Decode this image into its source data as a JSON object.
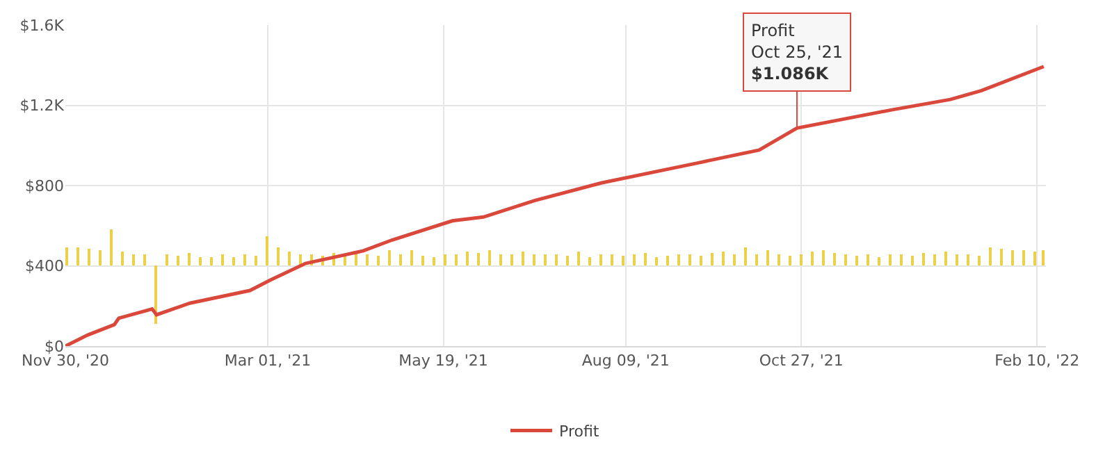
{
  "chart_data": {
    "type": "line",
    "legend": "bottom",
    "grid": true,
    "xlim": [
      "2020-11-30",
      "2022-02-14"
    ],
    "xticks": [
      {
        "value": "2020-11-30",
        "label": "Nov 30, '20"
      },
      {
        "value": "2021-03-01",
        "label": "Mar 01, '21"
      },
      {
        "value": "2021-05-19",
        "label": "May 19, '21"
      },
      {
        "value": "2021-08-09",
        "label": "Aug 09, '21"
      },
      {
        "value": "2021-10-27",
        "label": "Oct 27, '21"
      },
      {
        "value": "2022-02-10",
        "label": "Feb 10, '22"
      }
    ],
    "ylim": [
      0,
      1600
    ],
    "yticks": [
      {
        "value": 0,
        "label": "$0"
      },
      {
        "value": 400,
        "label": "$400"
      },
      {
        "value": 800,
        "label": "$800"
      },
      {
        "value": 1200,
        "label": "$1.2K"
      },
      {
        "value": 1600,
        "label": "$1.6K"
      }
    ],
    "series": [
      {
        "type": "bar",
        "color": "#ebcf45",
        "x": [
          "2020-12-01",
          "2020-12-06",
          "2020-12-11",
          "2020-12-16",
          "2020-12-21",
          "2020-12-26",
          "2020-12-31",
          "2021-01-05",
          "2021-01-10",
          "2021-01-15",
          "2021-01-20",
          "2021-01-25",
          "2021-01-30",
          "2021-02-04",
          "2021-02-09",
          "2021-02-14",
          "2021-02-19",
          "2021-02-24",
          "2021-03-01",
          "2021-03-06",
          "2021-03-11",
          "2021-03-16",
          "2021-03-21",
          "2021-03-26",
          "2021-03-31",
          "2021-04-05",
          "2021-04-10",
          "2021-04-15",
          "2021-04-20",
          "2021-04-25",
          "2021-04-30",
          "2021-05-05",
          "2021-05-10",
          "2021-05-15",
          "2021-05-20",
          "2021-05-25",
          "2021-05-30",
          "2021-06-04",
          "2021-06-09",
          "2021-06-14",
          "2021-06-19",
          "2021-06-24",
          "2021-06-29",
          "2021-07-04",
          "2021-07-09",
          "2021-07-14",
          "2021-07-19",
          "2021-07-24",
          "2021-07-29",
          "2021-08-03",
          "2021-08-08",
          "2021-08-13",
          "2021-08-18",
          "2021-08-23",
          "2021-08-28",
          "2021-09-02",
          "2021-09-07",
          "2021-09-12",
          "2021-09-17",
          "2021-09-22",
          "2021-09-27",
          "2021-10-02",
          "2021-10-07",
          "2021-10-12",
          "2021-10-17",
          "2021-10-22",
          "2021-10-27",
          "2021-11-01",
          "2021-11-06",
          "2021-11-11",
          "2021-11-16",
          "2021-11-21",
          "2021-11-26",
          "2021-12-01",
          "2021-12-06",
          "2021-12-11",
          "2021-12-16",
          "2021-12-21",
          "2021-12-26",
          "2021-12-31",
          "2022-01-05",
          "2022-01-10",
          "2022-01-15",
          "2022-01-20",
          "2022-01-25",
          "2022-01-30",
          "2022-02-04",
          "2022-02-09",
          "2022-02-13"
        ],
        "values": [
          90,
          95,
          85,
          80,
          180,
          70,
          60,
          55,
          -290,
          60,
          50,
          65,
          45,
          40,
          55,
          45,
          60,
          50,
          145,
          90,
          70,
          55,
          60,
          50,
          65,
          60,
          70,
          55,
          50,
          80,
          60,
          75,
          50,
          45,
          55,
          60,
          70,
          65,
          80,
          60,
          55,
          70,
          60,
          55,
          60,
          50,
          70,
          45,
          55,
          60,
          50,
          55,
          65,
          45,
          50,
          55,
          60,
          50,
          65,
          70,
          55,
          90,
          60,
          75,
          55,
          50,
          60,
          70,
          80,
          65,
          60,
          50,
          55,
          45,
          60,
          55,
          50,
          65,
          60,
          70,
          60,
          55,
          50,
          95,
          85,
          80,
          75,
          70,
          80
        ],
        "base": [
          400,
          400,
          400,
          400,
          400,
          400,
          400,
          400,
          400,
          400,
          400,
          400,
          400,
          400,
          400,
          400,
          400,
          400,
          400,
          400,
          400,
          400,
          400,
          400,
          400,
          400,
          400,
          400,
          400,
          400,
          400,
          400,
          400,
          400,
          400,
          400,
          400,
          400,
          400,
          400,
          400,
          400,
          400,
          400,
          400,
          400,
          400,
          400,
          400,
          400,
          400,
          400,
          400,
          400,
          400,
          400,
          400,
          400,
          400,
          400,
          400,
          400,
          400,
          400,
          400,
          400,
          400,
          400,
          400,
          400,
          400,
          400,
          400,
          400,
          400,
          400,
          400,
          400,
          400,
          400,
          400,
          400,
          400,
          400,
          400,
          400,
          400,
          400,
          400
        ]
      },
      {
        "name": "Profit",
        "color": "#d9483b",
        "x": [
          "2020-11-30",
          "2020-12-10",
          "2020-12-22",
          "2020-12-24",
          "2021-01-08",
          "2021-01-10",
          "2021-01-25",
          "2021-02-21",
          "2021-03-02",
          "2021-03-18",
          "2021-04-07",
          "2021-04-13",
          "2021-04-26",
          "2021-05-23",
          "2021-06-06",
          "2021-06-29",
          "2021-07-29",
          "2021-09-11",
          "2021-10-08",
          "2021-10-25",
          "2021-12-07",
          "2022-01-02",
          "2022-01-16",
          "2022-02-13"
        ],
        "values": [
          0,
          55,
          107,
          139,
          185,
          156,
          214,
          277,
          328,
          412,
          460,
          475,
          529,
          624,
          643,
          725,
          813,
          914,
          977,
          1086,
          1178,
          1229,
          1273,
          1393
        ]
      }
    ],
    "annotations": [
      {
        "text": "Profit\nOct 25, '21\n$1.086K",
        "x": "2021-10-25",
        "y": 1086
      }
    ]
  }
}
